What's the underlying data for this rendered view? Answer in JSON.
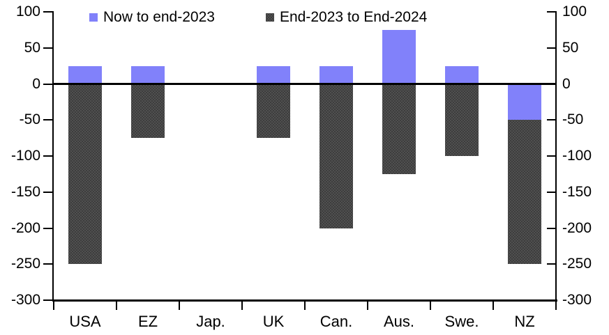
{
  "chart_data": {
    "type": "bar",
    "stacked": true,
    "title": "",
    "categories": [
      "USA",
      "EZ",
      "Jap.",
      "UK",
      "Can.",
      "Aus.",
      "Swe.",
      "NZ"
    ],
    "series": [
      {
        "name": "Now to end-2023",
        "color": "#8181fa",
        "pattern": "solid",
        "values": [
          25,
          25,
          0,
          25,
          25,
          75,
          25,
          -50
        ]
      },
      {
        "name": "End-2023 to End-2024",
        "color": "#3d3d3d",
        "pattern": "dots",
        "values": [
          -250,
          -75,
          0,
          -75,
          -200,
          -125,
          -100,
          -200
        ]
      }
    ],
    "xlabel": "",
    "ylabel": "",
    "ylim": [
      -300,
      100
    ],
    "yticks": [
      100,
      50,
      0,
      -50,
      -100,
      -150,
      -200,
      -250,
      -300
    ],
    "ytick_labels": [
      "100",
      "50",
      "0",
      "-50",
      "-100",
      "-150",
      "-200",
      "-250",
      "-300"
    ],
    "y_axis_sides": [
      "left",
      "right"
    ],
    "legend_position": "top",
    "grid": false
  }
}
